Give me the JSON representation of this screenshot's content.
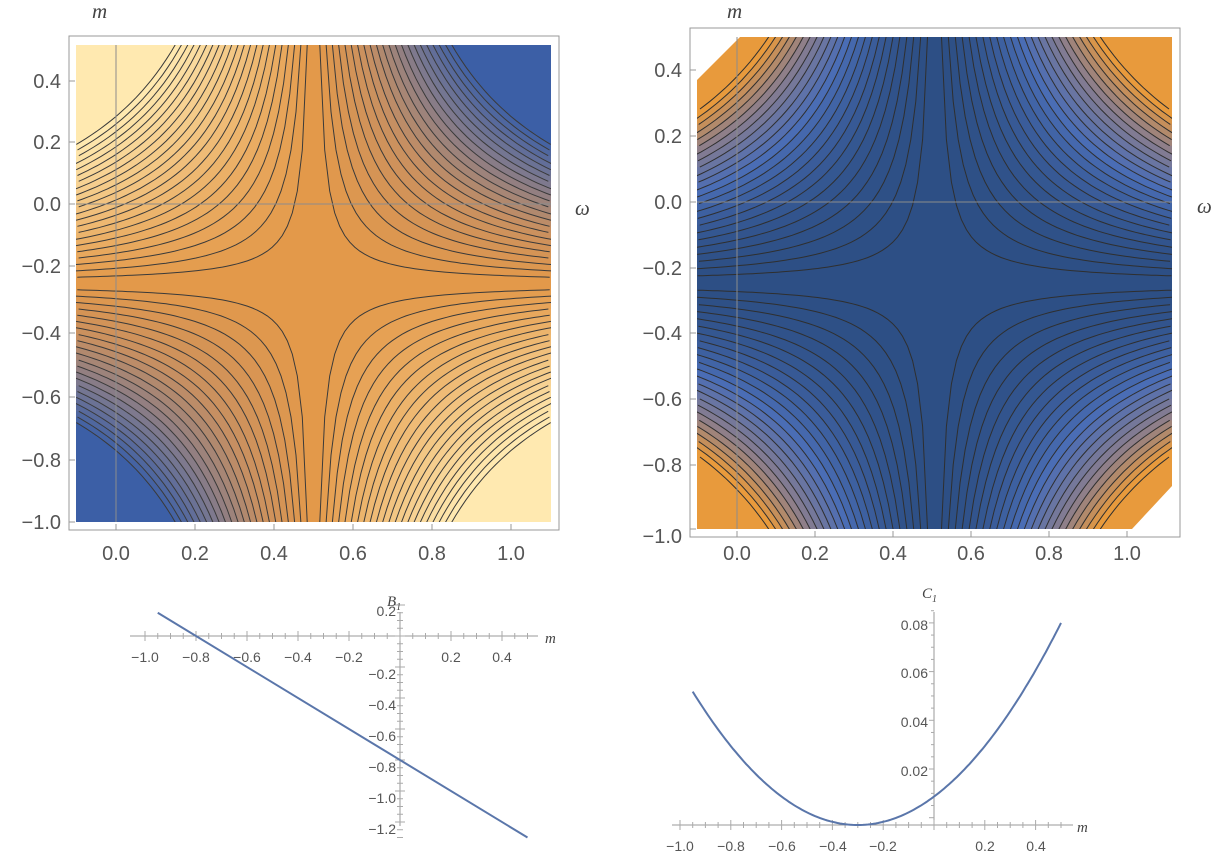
{
  "chart_data": [
    {
      "type": "contour",
      "name": "contour-left",
      "x": [
        -0.1,
        1.1
      ],
      "y": [
        -1.0,
        0.5
      ],
      "xticks": [
        "0.0",
        "0.2",
        "0.4",
        "0.6",
        "0.8",
        "1.0"
      ],
      "yticks": [
        "0.4",
        "0.2",
        "0.0",
        "−0.2",
        "−0.4",
        "−0.6",
        "−0.8",
        "−1.0"
      ],
      "xlabel": "ω",
      "ylabel": "m",
      "saddle": [
        0.5,
        -0.25
      ],
      "palette": {
        "center": "#e3994a",
        "light": "#ffe9b0",
        "dark": "#3c5fa6"
      }
    },
    {
      "type": "contour",
      "name": "contour-right",
      "x": [
        -0.1,
        1.1
      ],
      "y": [
        -1.0,
        0.5
      ],
      "xticks": [
        "0.0",
        "0.2",
        "0.4",
        "0.6",
        "0.8",
        "1.0"
      ],
      "yticks": [
        "0.4",
        "0.2",
        "0.0",
        "−0.2",
        "−0.4",
        "−0.6",
        "−0.8",
        "−1.0"
      ],
      "xlabel": "ω",
      "ylabel": "m",
      "saddle": [
        0.5,
        -0.25
      ],
      "palette": {
        "center": "#2d4f85",
        "mid": "#4a6db5",
        "hot": "#e89a3c"
      }
    },
    {
      "type": "line",
      "name": "B1",
      "x": [
        -0.95,
        0.5
      ],
      "y": [
        0.15,
        -1.3
      ],
      "xticks": [
        "−1.0",
        "−0.8",
        "−0.6",
        "−0.4",
        "−0.2",
        "0.2",
        "0.4"
      ],
      "yticks": [
        "0.2",
        "−0.2",
        "−0.4",
        "−0.6",
        "−0.8",
        "−1.0",
        "−1.2"
      ],
      "xlabel": "m",
      "ylabel": "B",
      "ylabel_sub": "1",
      "color": "#5a76aa"
    },
    {
      "type": "line",
      "name": "C1",
      "x": [
        -0.95,
        0.5
      ],
      "y": [
        0.052,
        0.08
      ],
      "vertex": [
        -0.3,
        -0.003
      ],
      "xticks": [
        "−1.0",
        "−0.8",
        "−0.6",
        "−0.4",
        "−0.2",
        "0.2",
        "0.4"
      ],
      "yticks": [
        "0.08",
        "0.06",
        "0.04",
        "0.02"
      ],
      "xlabel": "m",
      "ylabel": "C",
      "ylabel_sub": "1",
      "color": "#5a76aa"
    }
  ]
}
